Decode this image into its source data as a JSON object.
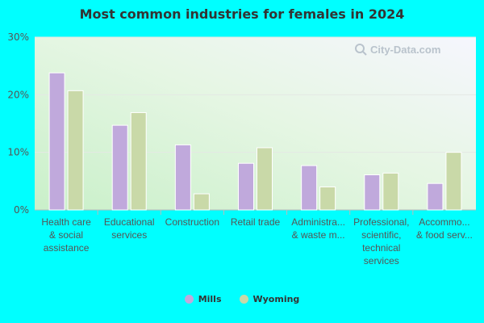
{
  "chart_data": {
    "type": "bar",
    "title": "Most common industries for females in 2024",
    "categories": [
      [
        "Health care",
        "& social",
        "assistance"
      ],
      [
        "Educational",
        "services"
      ],
      [
        "Construction"
      ],
      [
        "Retail trade"
      ],
      [
        "Administra...",
        "& waste m..."
      ],
      [
        "Professional,",
        "scientific,",
        "technical",
        "services"
      ],
      [
        "Accommo...",
        "& food serv..."
      ]
    ],
    "series": [
      {
        "name": "Mills",
        "color": "#c0a9dc",
        "values": [
          23.8,
          14.7,
          11.3,
          8.1,
          7.7,
          6.1,
          4.6
        ]
      },
      {
        "name": "Wyoming",
        "color": "#c9d9a8",
        "values": [
          20.7,
          16.9,
          2.8,
          10.8,
          4.0,
          6.4,
          10.0
        ]
      }
    ],
    "y_ticks": [
      "0%",
      "10%",
      "20%",
      "30%"
    ],
    "ylim": [
      0,
      30
    ],
    "legend_position": "bottom",
    "grid": true,
    "watermark": "City-Data.com"
  }
}
